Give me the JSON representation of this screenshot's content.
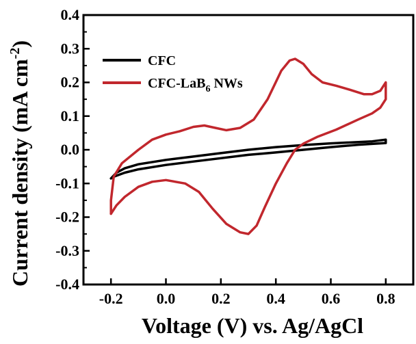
{
  "chart_data": {
    "type": "line",
    "xlabel": "Voltage (V) vs. Ag/AgCl",
    "ylabel": {
      "main": "Current density (mA cm",
      "sup": "-2",
      "tail": ")"
    },
    "xlim": [
      -0.3,
      0.9
    ],
    "ylim": [
      -0.4,
      0.4
    ],
    "xticks": [
      -0.2,
      0.0,
      0.2,
      0.4,
      0.6,
      0.8
    ],
    "xtick_labels": [
      "-0.2",
      "0.0",
      "0.2",
      "0.4",
      "0.6",
      "0.8"
    ],
    "yticks": [
      -0.4,
      -0.3,
      -0.2,
      -0.1,
      0.0,
      0.1,
      0.2,
      0.3,
      0.4
    ],
    "ytick_labels": [
      "-0.4",
      "-0.3",
      "-0.2",
      "-0.1",
      "0.0",
      "0.1",
      "0.2",
      "0.3",
      "0.4"
    ],
    "grid": false,
    "legend_position": "top-left",
    "series": [
      {
        "name": "CFC",
        "color": "#000000",
        "points": [
          [
            -0.2,
            -0.085
          ],
          [
            -0.18,
            -0.068
          ],
          [
            -0.15,
            -0.055
          ],
          [
            -0.1,
            -0.043
          ],
          [
            0.0,
            -0.03
          ],
          [
            0.1,
            -0.02
          ],
          [
            0.2,
            -0.01
          ],
          [
            0.3,
            0.0
          ],
          [
            0.4,
            0.008
          ],
          [
            0.5,
            0.014
          ],
          [
            0.6,
            0.019
          ],
          [
            0.7,
            0.023
          ],
          [
            0.75,
            0.025
          ],
          [
            0.8,
            0.03
          ],
          [
            0.8,
            0.02
          ],
          [
            0.7,
            0.015
          ],
          [
            0.6,
            0.008
          ],
          [
            0.5,
            0.0
          ],
          [
            0.4,
            -0.008
          ],
          [
            0.3,
            -0.015
          ],
          [
            0.2,
            -0.025
          ],
          [
            0.1,
            -0.035
          ],
          [
            0.0,
            -0.045
          ],
          [
            -0.1,
            -0.058
          ],
          [
            -0.15,
            -0.068
          ],
          [
            -0.19,
            -0.08
          ],
          [
            -0.2,
            -0.085
          ]
        ]
      },
      {
        "name": {
          "main": "CFC-LaB",
          "sub": "6",
          "tail": " NWs"
        },
        "color": "#c1272d",
        "points": [
          [
            -0.2,
            -0.19
          ],
          [
            -0.2,
            -0.15
          ],
          [
            -0.19,
            -0.08
          ],
          [
            -0.16,
            -0.04
          ],
          [
            -0.1,
            0.0
          ],
          [
            -0.05,
            0.03
          ],
          [
            0.0,
            0.045
          ],
          [
            0.05,
            0.055
          ],
          [
            0.1,
            0.068
          ],
          [
            0.14,
            0.072
          ],
          [
            0.18,
            0.065
          ],
          [
            0.22,
            0.058
          ],
          [
            0.27,
            0.065
          ],
          [
            0.32,
            0.09
          ],
          [
            0.37,
            0.15
          ],
          [
            0.42,
            0.235
          ],
          [
            0.45,
            0.265
          ],
          [
            0.47,
            0.27
          ],
          [
            0.5,
            0.255
          ],
          [
            0.53,
            0.225
          ],
          [
            0.57,
            0.2
          ],
          [
            0.62,
            0.19
          ],
          [
            0.67,
            0.178
          ],
          [
            0.72,
            0.165
          ],
          [
            0.75,
            0.165
          ],
          [
            0.78,
            0.175
          ],
          [
            0.8,
            0.2
          ],
          [
            0.8,
            0.15
          ],
          [
            0.78,
            0.125
          ],
          [
            0.75,
            0.108
          ],
          [
            0.7,
            0.09
          ],
          [
            0.62,
            0.06
          ],
          [
            0.55,
            0.038
          ],
          [
            0.5,
            0.018
          ],
          [
            0.47,
            0.0
          ],
          [
            0.44,
            -0.04
          ],
          [
            0.4,
            -0.1
          ],
          [
            0.36,
            -0.17
          ],
          [
            0.33,
            -0.225
          ],
          [
            0.3,
            -0.25
          ],
          [
            0.27,
            -0.245
          ],
          [
            0.22,
            -0.22
          ],
          [
            0.17,
            -0.175
          ],
          [
            0.12,
            -0.125
          ],
          [
            0.07,
            -0.1
          ],
          [
            0.0,
            -0.09
          ],
          [
            -0.05,
            -0.095
          ],
          [
            -0.1,
            -0.11
          ],
          [
            -0.15,
            -0.14
          ],
          [
            -0.18,
            -0.165
          ],
          [
            -0.2,
            -0.19
          ]
        ]
      }
    ]
  }
}
